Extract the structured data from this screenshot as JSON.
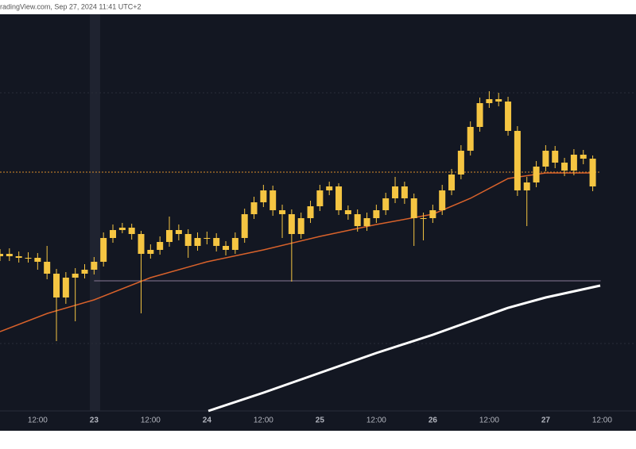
{
  "chart_data": {
    "type": "candlestick",
    "source": "radingView.com, Sep 27, 2024 11:41 UTC+2",
    "color": "#f5c542",
    "x": [
      4,
      6,
      8,
      10,
      12,
      14,
      16,
      18,
      20,
      22,
      24,
      26,
      28,
      30,
      32,
      34,
      36,
      38,
      40,
      42,
      44,
      46,
      48,
      50,
      52,
      54,
      56,
      58,
      60,
      62,
      64,
      66,
      68,
      70,
      72,
      74,
      76,
      78,
      80,
      82,
      84,
      86,
      88,
      90,
      92,
      94,
      96,
      98,
      100,
      102,
      104,
      106,
      108,
      110,
      112,
      114,
      116,
      118,
      120,
      122,
      124,
      126,
      128,
      130
    ],
    "open": [
      39,
      39.6,
      39,
      38.6,
      38.6,
      37.6,
      34.6,
      28.6,
      33.6,
      34.6,
      35.6,
      37.6,
      43.6,
      45.6,
      46.2,
      44.6,
      39.6,
      40.6,
      42.6,
      45.6,
      44.6,
      41.6,
      43.6,
      43.6,
      41.6,
      40.6,
      43.6,
      49.6,
      52.6,
      55.6,
      50.6,
      49.6,
      44.6,
      48.6,
      51.6,
      55.6,
      56.6,
      50.6,
      49.6,
      46.6,
      48.6,
      50.6,
      53.6,
      56.6,
      53.6,
      48.6,
      48.6,
      50.6,
      55.6,
      59.6,
      65.6,
      71.6,
      77.6,
      78.6,
      78,
      70.6,
      55.6,
      57.6,
      61.6,
      65.6,
      62.6,
      60.6,
      64.6,
      63.6
    ],
    "high": [
      40.8,
      41,
      40.2,
      40,
      39.8,
      41.6,
      35.8,
      35,
      36,
      37,
      38.8,
      45,
      47,
      47.4,
      47.2,
      45.4,
      42,
      44,
      49,
      47,
      45.8,
      45,
      45.2,
      44.8,
      42.8,
      45,
      51,
      54,
      57,
      56.8,
      52,
      50.8,
      50,
      53,
      57,
      57.8,
      57.4,
      51.8,
      50.8,
      50,
      52,
      55,
      59,
      57.8,
      54.8,
      50,
      52,
      57,
      61,
      67,
      73,
      79,
      80.6,
      80.2,
      79.2,
      71.8,
      59,
      63,
      67,
      66.8,
      63.8,
      66,
      65.8,
      64.4
    ],
    "low": [
      37.8,
      37.8,
      37.4,
      37.4,
      35.6,
      33.2,
      17.6,
      27,
      22.6,
      33.4,
      34.4,
      36.4,
      42.4,
      44.8,
      43.2,
      24.6,
      38.4,
      39.4,
      41.4,
      43,
      38.6,
      40.4,
      42,
      40.2,
      39.2,
      39.6,
      42.4,
      48.4,
      51.4,
      49.2,
      43.6,
      32.6,
      43.4,
      47.4,
      50.4,
      54.4,
      49.4,
      48.2,
      45.2,
      45.4,
      47.4,
      49.4,
      52.4,
      52.2,
      41.6,
      43,
      47.4,
      49.4,
      54.4,
      58.4,
      64.4,
      70.4,
      76.4,
      76.8,
      69.4,
      54.2,
      46.6,
      56.4,
      60.4,
      61.2,
      59.2,
      59.4,
      62.2,
      55.4
    ],
    "close": [
      39.6,
      39,
      38.6,
      38.6,
      37.6,
      34.6,
      28.6,
      33.6,
      34.6,
      35.6,
      37.6,
      43.6,
      45.6,
      46.2,
      44.6,
      39.6,
      40.6,
      42.6,
      45.6,
      44.6,
      41.6,
      43.6,
      43.6,
      41.6,
      40.6,
      43.6,
      49.6,
      52.6,
      55.6,
      50.6,
      49.6,
      44.6,
      48.6,
      51.6,
      55.6,
      56.6,
      50.6,
      49.6,
      46.6,
      48.6,
      50.6,
      53.6,
      56.6,
      53.6,
      48.6,
      48.6,
      50.6,
      55.6,
      59.6,
      65.6,
      71.6,
      77.6,
      78.6,
      78,
      70.6,
      55.6,
      57.6,
      61.6,
      65.6,
      62.6,
      60.6,
      64.6,
      63.6,
      56.6
    ],
    "lines": [
      {
        "color": "#d9622b",
        "x": [
          4,
          14.1,
          24,
          36,
          48,
          60,
          72,
          84,
          96,
          104,
          112,
          120,
          130
        ],
        "values": [
          20,
          24.6,
          28,
          33.6,
          37.6,
          40.6,
          44,
          47,
          49.6,
          53.6,
          58.6,
          60,
          60
        ]
      },
      {
        "color": "#ffffff",
        "x": [
          48.3,
          60,
          72,
          84,
          96,
          104,
          112,
          120,
          131.6
        ],
        "values": [
          0,
          4.6,
          9.6,
          14.6,
          19.2,
          22.6,
          26,
          28.6,
          31.6
        ]
      }
    ],
    "levels": [
      {
        "value": 60.2,
        "color": "#d98c2b",
        "dashed": true,
        "from": 4
      },
      {
        "value": 32.8,
        "color": "#8a7a96",
        "dashed": false,
        "from": 24
      }
    ],
    "xlim": [
      4,
      139.2
    ],
    "ylim": [
      0,
      100
    ],
    "xticks": [
      {
        "value": 12,
        "label": "12:00"
      },
      {
        "value": 24,
        "label": "23"
      },
      {
        "value": 36,
        "label": "12:00"
      },
      {
        "value": 48,
        "label": "24"
      },
      {
        "value": 60,
        "label": "12:00"
      },
      {
        "value": 72,
        "label": "25"
      },
      {
        "value": 84,
        "label": "12:00"
      },
      {
        "value": 96,
        "label": "26"
      },
      {
        "value": 108,
        "label": "12:00"
      },
      {
        "value": 120,
        "label": "27"
      },
      {
        "value": 132,
        "label": "12:00"
      }
    ]
  }
}
